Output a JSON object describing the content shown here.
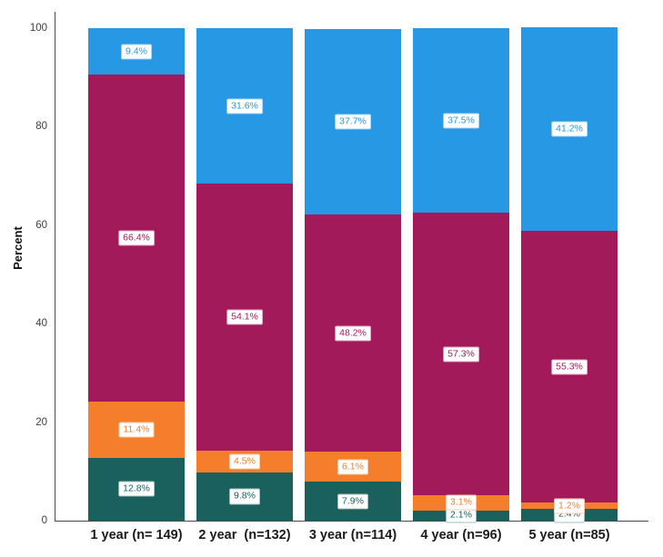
{
  "chart_data": {
    "type": "bar",
    "stacked": true,
    "orientation": "vertical",
    "title": "",
    "xlabel": "",
    "ylabel": "Percent",
    "ylim": [
      0,
      100
    ],
    "yticks": [
      0,
      20,
      40,
      60,
      80,
      100
    ],
    "grid": false,
    "legend": "none",
    "categories": [
      "1 year (n= 149)",
      "2 year  (n=132)",
      "3 year (n=114)",
      "4 year (n=96)",
      "5 year (n=85)"
    ],
    "series": [
      {
        "id": "teal-segment",
        "color": "#1A605C",
        "values": [
          12.8,
          9.8,
          7.9,
          2.1,
          2.4
        ],
        "labels": [
          "12.8%",
          "9.8%",
          "7.9%",
          "2.1%",
          "2.4%"
        ]
      },
      {
        "id": "orange-segment",
        "color": "#F57E2C",
        "values": [
          11.4,
          4.5,
          6.1,
          3.1,
          1.2
        ],
        "labels": [
          "11.4%",
          "4.5%",
          "6.1%",
          "3.1%",
          "1.2%"
        ]
      },
      {
        "id": "maroon-segment",
        "color": "#A31A5A",
        "values": [
          66.4,
          54.1,
          48.2,
          57.3,
          55.3
        ],
        "labels": [
          "66.4%",
          "54.1%",
          "48.2%",
          "57.3%",
          "55.3%"
        ]
      },
      {
        "id": "blue-segment",
        "color": "#2698E4",
        "values": [
          9.4,
          31.6,
          37.7,
          37.5,
          41.2
        ],
        "labels": [
          "9.4%",
          "31.6%",
          "37.7%",
          "37.5%",
          "41.2%"
        ]
      }
    ]
  }
}
